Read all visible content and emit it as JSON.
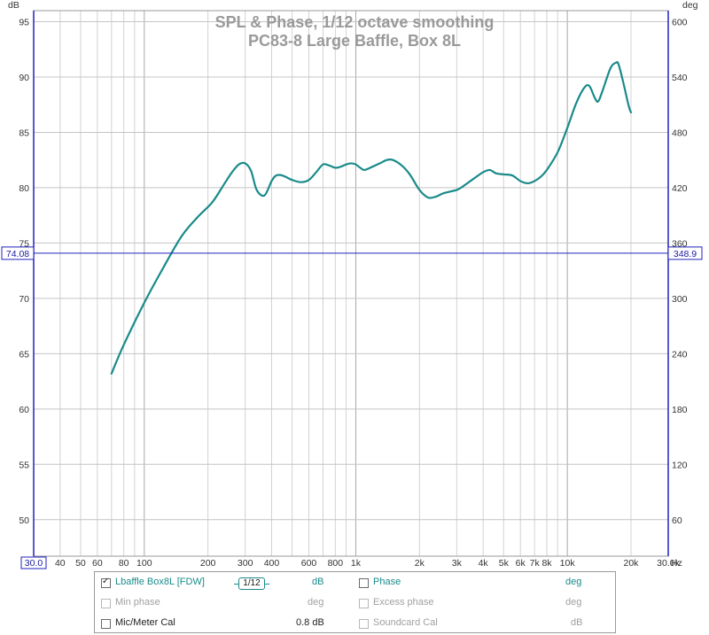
{
  "chart_data": {
    "type": "line",
    "title": "SPL & Phase, 1/12 octave smoothing",
    "subtitle": "PC83-8 Large Baffle, Box 8L",
    "xscale": "log",
    "xlim": [
      30,
      30000
    ],
    "x_unit": "Hz",
    "x_ticks": [
      {
        "value": 30,
        "label": "30.0"
      },
      {
        "value": 40,
        "label": "40"
      },
      {
        "value": 50,
        "label": "50"
      },
      {
        "value": 60,
        "label": "60"
      },
      {
        "value": 80,
        "label": "80"
      },
      {
        "value": 100,
        "label": "100"
      },
      {
        "value": 200,
        "label": "200"
      },
      {
        "value": 300,
        "label": "300"
      },
      {
        "value": 400,
        "label": "400"
      },
      {
        "value": 600,
        "label": "600"
      },
      {
        "value": 800,
        "label": "800"
      },
      {
        "value": 1000,
        "label": "1k"
      },
      {
        "value": 2000,
        "label": "2k"
      },
      {
        "value": 3000,
        "label": "3k"
      },
      {
        "value": 4000,
        "label": "4k"
      },
      {
        "value": 5000,
        "label": "5k"
      },
      {
        "value": 6000,
        "label": "6k"
      },
      {
        "value": 7000,
        "label": "7k"
      },
      {
        "value": 8000,
        "label": "8k"
      },
      {
        "value": 10000,
        "label": "10k"
      },
      {
        "value": 20000,
        "label": "20k"
      },
      {
        "value": 30000,
        "label": "30.0k"
      }
    ],
    "ylabel": "dB",
    "ylim": [
      46.7,
      96
    ],
    "y_ticks": [
      50,
      55,
      60,
      65,
      70,
      75,
      80,
      85,
      90,
      95
    ],
    "y2label": "deg",
    "y2_ticks": [
      {
        "value": 60,
        "at_db": 50
      },
      {
        "value": 120,
        "at_db": 55
      },
      {
        "value": 180,
        "at_db": 60
      },
      {
        "value": 240,
        "at_db": 65
      },
      {
        "value": 300,
        "at_db": 70
      },
      {
        "value": 360,
        "at_db": 75
      },
      {
        "value": 420,
        "at_db": 80
      },
      {
        "value": 480,
        "at_db": 85
      },
      {
        "value": 540,
        "at_db": 90
      },
      {
        "value": 600,
        "at_db": 95
      }
    ],
    "cursor": {
      "db": 74.08,
      "db_label": "74.08",
      "deg_label": "348.9"
    },
    "grid": true,
    "series": [
      {
        "name": "Lbaffle Box8L [FDW]",
        "color": "#1a8a8a",
        "x": [
          70,
          80,
          100,
          120,
          150,
          180,
          210,
          240,
          260,
          280,
          300,
          320,
          340,
          370,
          400,
          420,
          450,
          500,
          550,
          600,
          650,
          700,
          750,
          800,
          850,
          900,
          950,
          1000,
          1050,
          1100,
          1200,
          1300,
          1400,
          1500,
          1650,
          1800,
          2000,
          2200,
          2400,
          2600,
          3000,
          3200,
          3600,
          4000,
          4300,
          4600,
          5000,
          5500,
          6000,
          6500,
          7000,
          7500,
          8000,
          9000,
          10000,
          11000,
          12000,
          12700,
          13500,
          14000,
          14700,
          16000,
          17000,
          17500,
          18500,
          19500,
          20000
        ],
        "values": [
          63.2,
          65.8,
          69.6,
          72.4,
          75.6,
          77.4,
          78.7,
          80.4,
          81.4,
          82.1,
          82.2,
          81.5,
          79.8,
          79.3,
          80.6,
          81.1,
          81.1,
          80.7,
          80.5,
          80.7,
          81.4,
          82.1,
          82.0,
          81.8,
          81.9,
          82.1,
          82.2,
          82.1,
          81.8,
          81.6,
          81.9,
          82.2,
          82.5,
          82.5,
          82.0,
          81.2,
          79.8,
          79.1,
          79.2,
          79.5,
          79.8,
          80.1,
          80.8,
          81.4,
          81.6,
          81.3,
          81.2,
          81.1,
          80.6,
          80.4,
          80.6,
          81.0,
          81.6,
          83.2,
          85.4,
          87.6,
          89.0,
          89.2,
          88.1,
          87.8,
          88.8,
          90.8,
          91.3,
          91.1,
          89.3,
          87.4,
          86.8
        ]
      }
    ]
  },
  "legend": {
    "rows": [
      {
        "left": {
          "label": "Lbaffle Box8L [FDW]",
          "checked": true,
          "enabled": true,
          "smoothing": "1/12",
          "unit": "dB"
        },
        "right": {
          "label": "Phase",
          "checked": false,
          "enabled": true,
          "unit": "deg"
        }
      },
      {
        "left": {
          "label": "Min phase",
          "checked": false,
          "enabled": false,
          "unit": "deg"
        },
        "right": {
          "label": "Excess phase",
          "checked": false,
          "enabled": false,
          "unit": "deg"
        }
      },
      {
        "left": {
          "label": "Mic/Meter Cal",
          "checked": false,
          "enabled": true,
          "unit": "0.8 dB"
        },
        "right": {
          "label": "Soundcard Cal",
          "checked": false,
          "enabled": false,
          "unit": "dB"
        }
      }
    ]
  }
}
